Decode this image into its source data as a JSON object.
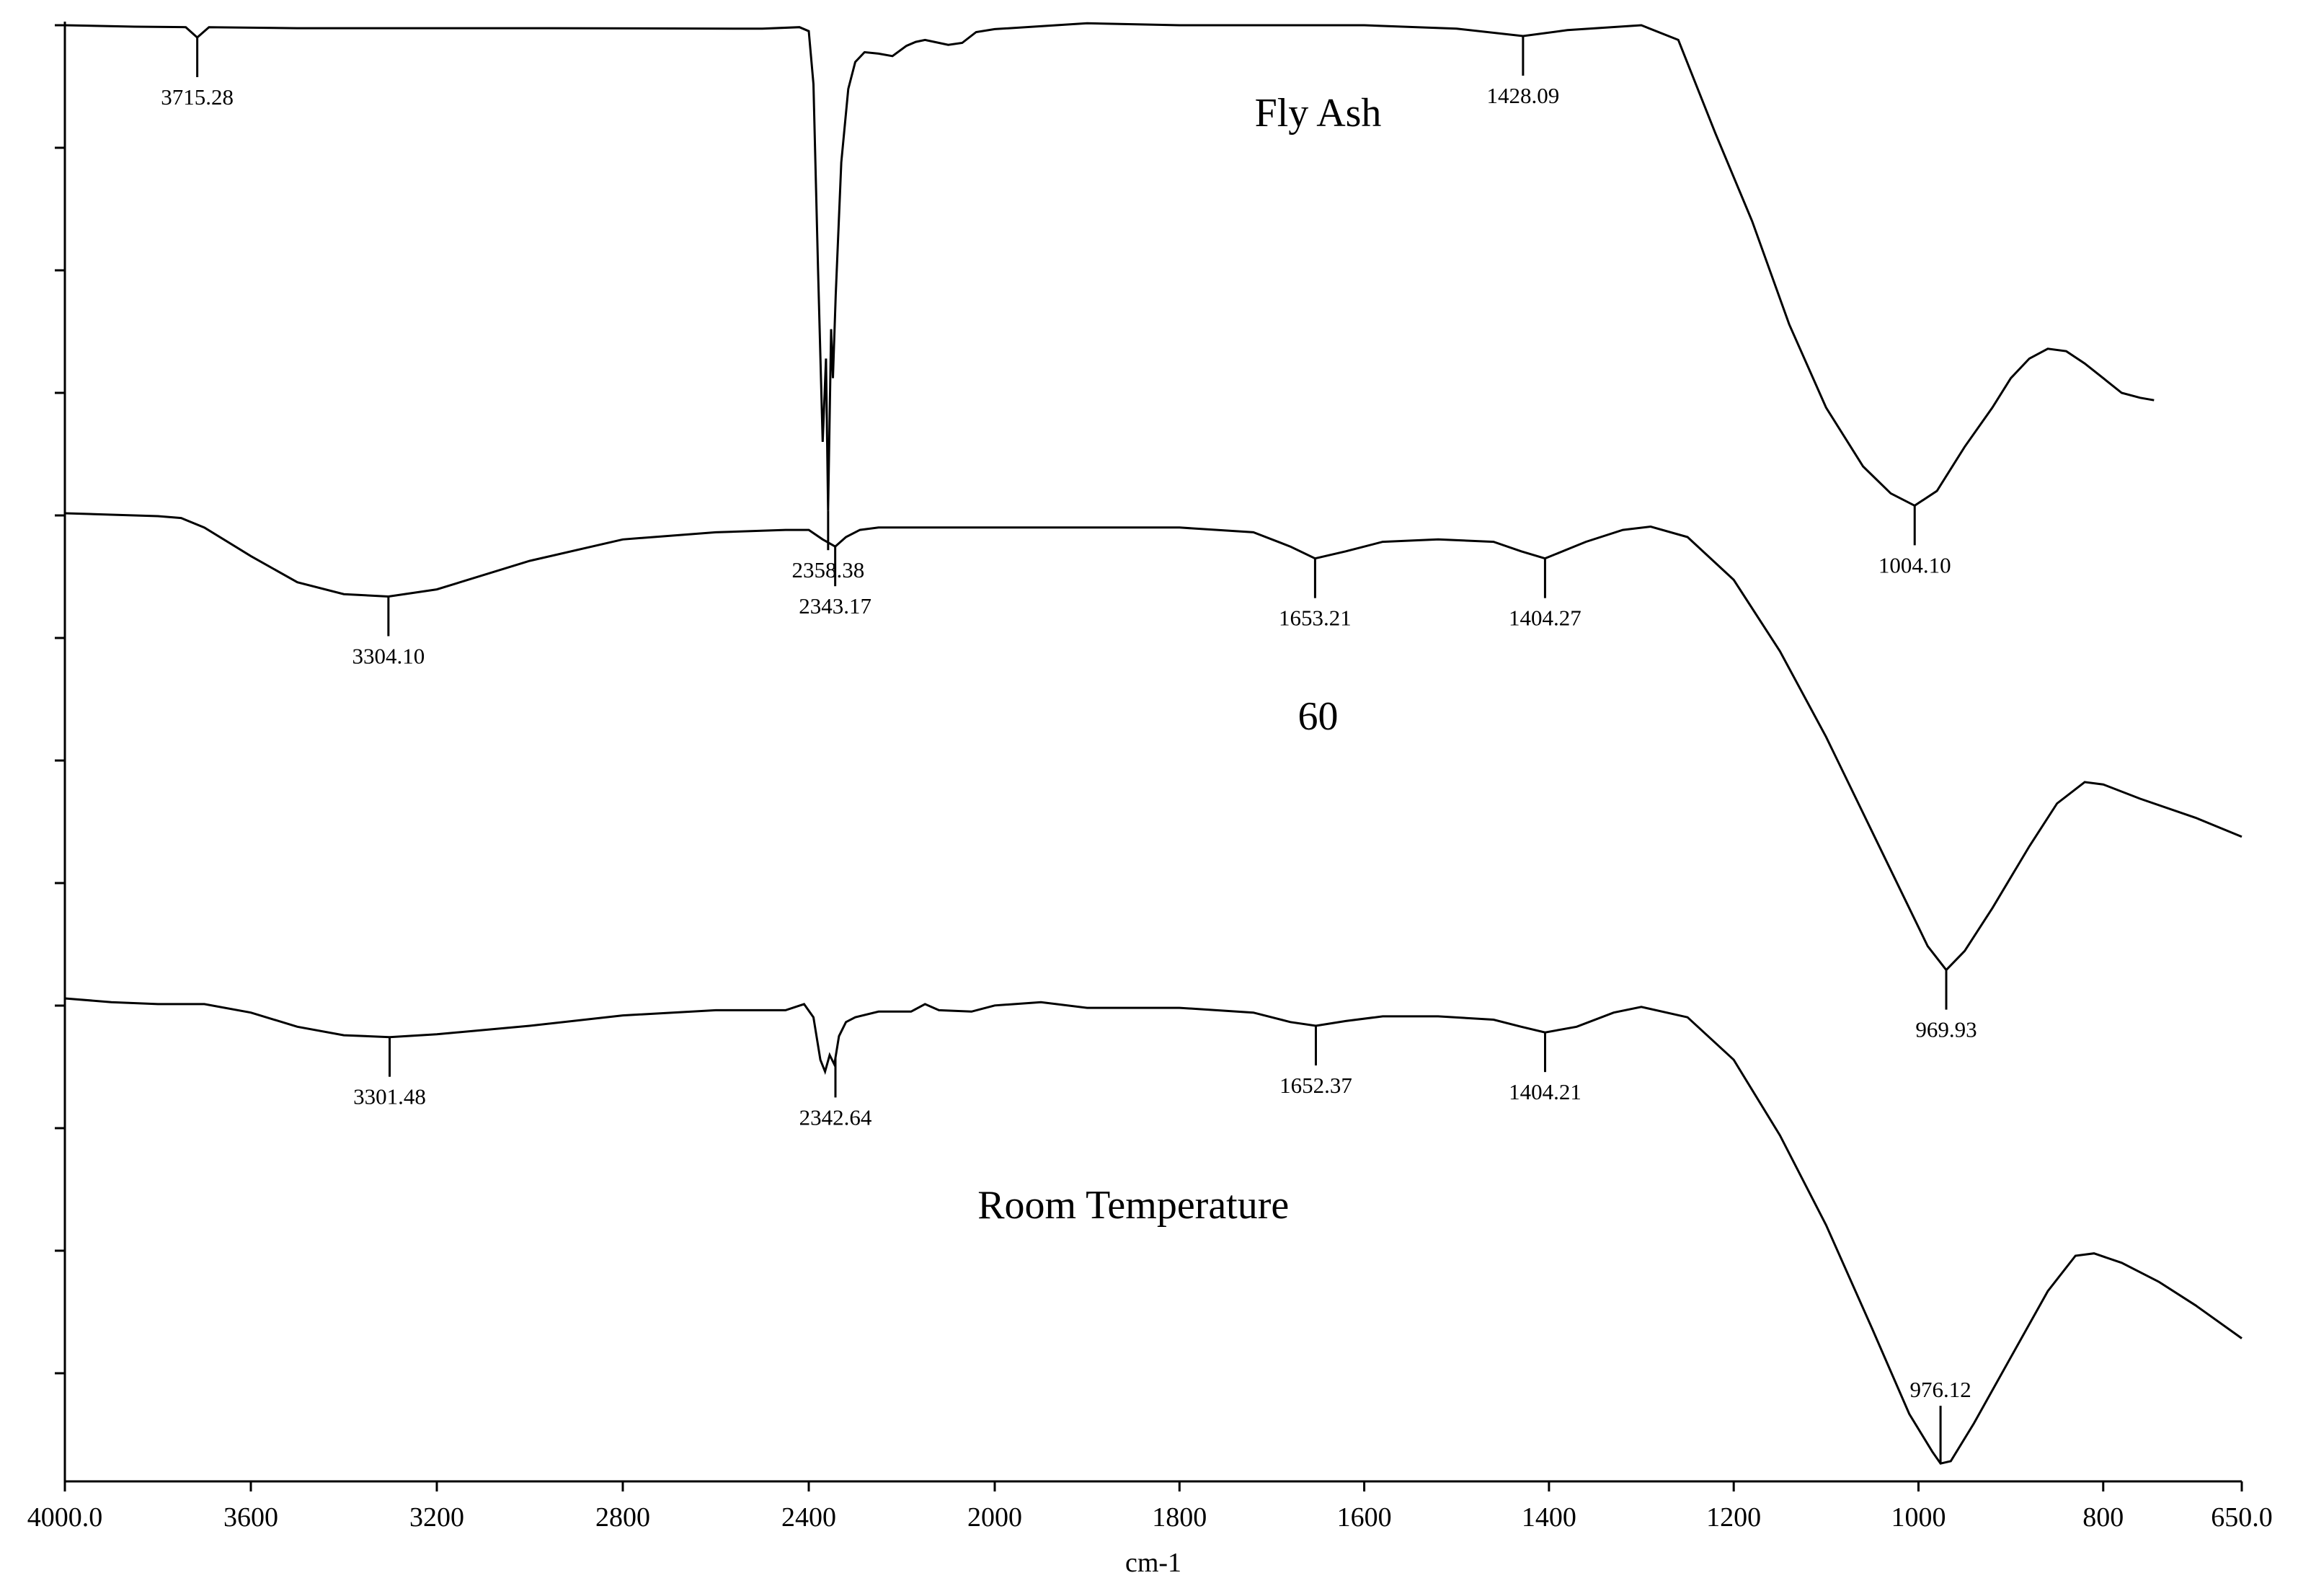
{
  "chart_data": {
    "type": "line",
    "title": "",
    "xlabel": "cm-1",
    "ylabel": "",
    "xlim": [
      4000,
      650
    ],
    "x_reversed": true,
    "grid": false,
    "x_ticks": [
      {
        "value": 4000,
        "label": "4000.0"
      },
      {
        "value": 3600,
        "label": "3600"
      },
      {
        "value": 3200,
        "label": "3200"
      },
      {
        "value": 2800,
        "label": "2800"
      },
      {
        "value": 2400,
        "label": "2400"
      },
      {
        "value": 2000,
        "label": "2000"
      },
      {
        "value": 1800,
        "label": "1800"
      },
      {
        "value": 1600,
        "label": "1600"
      },
      {
        "value": 1400,
        "label": "1400"
      },
      {
        "value": 1200,
        "label": "1200"
      },
      {
        "value": 1000,
        "label": "1000"
      },
      {
        "value": 800,
        "label": "800"
      },
      {
        "value": 650,
        "label": "650.0"
      }
    ],
    "series": [
      {
        "name": "Fly Ash",
        "label_anchor_x": 1650,
        "points": [
          [
            4000,
            0.0
          ],
          [
            3850,
            0.003
          ],
          [
            3740,
            0.004
          ],
          [
            3715.28,
            0.025
          ],
          [
            3690,
            0.004
          ],
          [
            3500,
            0.006
          ],
          [
            3000,
            0.006
          ],
          [
            2500,
            0.007
          ],
          [
            2420,
            0.004
          ],
          [
            2400,
            0.012
          ],
          [
            2390,
            0.12
          ],
          [
            2380,
            0.5
          ],
          [
            2370,
            0.85
          ],
          [
            2363,
            0.68
          ],
          [
            2358.38,
            0.99
          ],
          [
            2352,
            0.62
          ],
          [
            2348,
            0.72
          ],
          [
            2342,
            0.55
          ],
          [
            2330,
            0.28
          ],
          [
            2315,
            0.13
          ],
          [
            2300,
            0.075
          ],
          [
            2280,
            0.055
          ],
          [
            2250,
            0.058
          ],
          [
            2220,
            0.063
          ],
          [
            2190,
            0.042
          ],
          [
            2170,
            0.034
          ],
          [
            2150,
            0.03
          ],
          [
            2130,
            0.034
          ],
          [
            2100,
            0.04
          ],
          [
            2070,
            0.036
          ],
          [
            2040,
            0.014
          ],
          [
            2000,
            0.008
          ],
          [
            1900,
            -0.004
          ],
          [
            1800,
            0.0
          ],
          [
            1600,
            0.0
          ],
          [
            1500,
            0.007
          ],
          [
            1428.09,
            0.022
          ],
          [
            1380,
            0.01
          ],
          [
            1300,
            0.0
          ],
          [
            1260,
            0.03
          ],
          [
            1220,
            0.22
          ],
          [
            1180,
            0.4
          ],
          [
            1140,
            0.61
          ],
          [
            1100,
            0.78
          ],
          [
            1060,
            0.9
          ],
          [
            1030,
            0.955
          ],
          [
            1004.1,
            0.98
          ],
          [
            980,
            0.95
          ],
          [
            950,
            0.86
          ],
          [
            920,
            0.78
          ],
          [
            900,
            0.72
          ],
          [
            880,
            0.68
          ],
          [
            860,
            0.66
          ],
          [
            840,
            0.665
          ],
          [
            820,
            0.69
          ],
          [
            800,
            0.72
          ],
          [
            780,
            0.75
          ],
          [
            760,
            0.76
          ],
          [
            745,
            0.765
          ]
        ],
        "peaks": [
          {
            "x": 3715.28,
            "label": "3715.28"
          },
          {
            "x": 2358.38,
            "label": "2358.38"
          },
          {
            "x": 1428.09,
            "label": "1428.09"
          },
          {
            "x": 1004.1,
            "label": "1004.10"
          }
        ]
      },
      {
        "name": "60",
        "label_anchor_x": 1650,
        "points": [
          [
            4000,
            0.0
          ],
          [
            3900,
            0.003
          ],
          [
            3800,
            0.006
          ],
          [
            3750,
            0.01
          ],
          [
            3700,
            0.03
          ],
          [
            3600,
            0.09
          ],
          [
            3500,
            0.145
          ],
          [
            3400,
            0.17
          ],
          [
            3304.1,
            0.175
          ],
          [
            3200,
            0.16
          ],
          [
            3000,
            0.1
          ],
          [
            2800,
            0.055
          ],
          [
            2600,
            0.04
          ],
          [
            2450,
            0.035
          ],
          [
            2400,
            0.035
          ],
          [
            2370,
            0.055
          ],
          [
            2343.17,
            0.07
          ],
          [
            2320,
            0.05
          ],
          [
            2290,
            0.035
          ],
          [
            2250,
            0.03
          ],
          [
            2200,
            0.03
          ],
          [
            2150,
            0.03
          ],
          [
            2000,
            0.03
          ],
          [
            1800,
            0.03
          ],
          [
            1720,
            0.04
          ],
          [
            1680,
            0.07
          ],
          [
            1653.21,
            0.095
          ],
          [
            1620,
            0.08
          ],
          [
            1580,
            0.06
          ],
          [
            1520,
            0.055
          ],
          [
            1460,
            0.06
          ],
          [
            1430,
            0.08
          ],
          [
            1404.27,
            0.095
          ],
          [
            1360,
            0.06
          ],
          [
            1320,
            0.035
          ],
          [
            1290,
            0.028
          ],
          [
            1250,
            0.05
          ],
          [
            1200,
            0.14
          ],
          [
            1150,
            0.29
          ],
          [
            1100,
            0.47
          ],
          [
            1050,
            0.67
          ],
          [
            1010,
            0.83
          ],
          [
            990,
            0.91
          ],
          [
            969.93,
            0.96
          ],
          [
            950,
            0.92
          ],
          [
            920,
            0.83
          ],
          [
            880,
            0.7
          ],
          [
            850,
            0.61
          ],
          [
            820,
            0.565
          ],
          [
            800,
            0.57
          ],
          [
            760,
            0.6
          ],
          [
            700,
            0.64
          ],
          [
            650,
            0.68
          ]
        ],
        "peaks": [
          {
            "x": 3304.1,
            "label": "3304.10"
          },
          {
            "x": 2343.17,
            "label": "2343.17"
          },
          {
            "x": 1653.21,
            "label": "1653.21"
          },
          {
            "x": 1404.27,
            "label": "1404.27"
          },
          {
            "x": 969.93,
            "label": "969.93"
          }
        ]
      },
      {
        "name": "Room Temperature",
        "label_anchor_x": 1850,
        "points": [
          [
            4000,
            0.0
          ],
          [
            3900,
            0.008
          ],
          [
            3800,
            0.012
          ],
          [
            3700,
            0.012
          ],
          [
            3600,
            0.03
          ],
          [
            3500,
            0.06
          ],
          [
            3400,
            0.078
          ],
          [
            3301.48,
            0.082
          ],
          [
            3200,
            0.076
          ],
          [
            3000,
            0.058
          ],
          [
            2800,
            0.036
          ],
          [
            2600,
            0.025
          ],
          [
            2450,
            0.025
          ],
          [
            2410,
            0.012
          ],
          [
            2390,
            0.04
          ],
          [
            2375,
            0.13
          ],
          [
            2365,
            0.155
          ],
          [
            2355,
            0.12
          ],
          [
            2345,
            0.14
          ],
          [
            2335,
            0.08
          ],
          [
            2320,
            0.05
          ],
          [
            2300,
            0.04
          ],
          [
            2250,
            0.028
          ],
          [
            2180,
            0.028
          ],
          [
            2150,
            0.012
          ],
          [
            2120,
            0.025
          ],
          [
            2050,
            0.028
          ],
          [
            2000,
            0.015
          ],
          [
            1950,
            0.008
          ],
          [
            1900,
            0.02
          ],
          [
            1800,
            0.02
          ],
          [
            1720,
            0.03
          ],
          [
            1680,
            0.05
          ],
          [
            1652.37,
            0.058
          ],
          [
            1620,
            0.048
          ],
          [
            1580,
            0.038
          ],
          [
            1520,
            0.038
          ],
          [
            1460,
            0.045
          ],
          [
            1430,
            0.06
          ],
          [
            1404.21,
            0.072
          ],
          [
            1370,
            0.06
          ],
          [
            1330,
            0.03
          ],
          [
            1300,
            0.018
          ],
          [
            1250,
            0.04
          ],
          [
            1200,
            0.13
          ],
          [
            1150,
            0.29
          ],
          [
            1100,
            0.48
          ],
          [
            1050,
            0.7
          ],
          [
            1010,
            0.88
          ],
          [
            985,
            0.96
          ],
          [
            976.12,
            0.985
          ],
          [
            965,
            0.98
          ],
          [
            940,
            0.9
          ],
          [
            900,
            0.76
          ],
          [
            860,
            0.62
          ],
          [
            830,
            0.545
          ],
          [
            810,
            0.54
          ],
          [
            780,
            0.56
          ],
          [
            740,
            0.6
          ],
          [
            700,
            0.65
          ],
          [
            650,
            0.72
          ]
        ],
        "peaks": [
          {
            "x": 3301.48,
            "label": "3301.48"
          },
          {
            "x": 2342.64,
            "label": "2342.64"
          },
          {
            "x": 1652.37,
            "label": "1652.37"
          },
          {
            "x": 1404.21,
            "label": "1404.21"
          },
          {
            "x": 976.12,
            "label": "976.12"
          }
        ]
      }
    ]
  }
}
